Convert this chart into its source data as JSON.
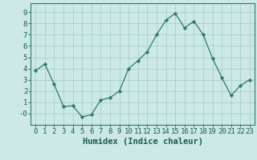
{
  "x": [
    0,
    1,
    2,
    3,
    4,
    5,
    6,
    7,
    8,
    9,
    10,
    11,
    12,
    13,
    14,
    15,
    16,
    17,
    18,
    19,
    20,
    21,
    22,
    23
  ],
  "y": [
    3.8,
    4.4,
    2.6,
    0.6,
    0.7,
    -0.3,
    -0.1,
    1.2,
    1.4,
    2.0,
    4.0,
    4.7,
    5.5,
    7.0,
    8.3,
    8.9,
    7.6,
    8.2,
    7.0,
    4.9,
    3.2,
    1.6,
    2.5,
    3.0
  ],
  "xlabel": "Humidex (Indice chaleur)",
  "bg_color": "#cce9e5",
  "line_color": "#2d7a6a",
  "grid_color": "#aacfca",
  "xlim": [
    -0.5,
    23.5
  ],
  "ylim": [
    -1.0,
    9.8
  ],
  "yticks": [
    0,
    1,
    2,
    3,
    4,
    5,
    6,
    7,
    8,
    9
  ],
  "xticks": [
    0,
    1,
    2,
    3,
    4,
    5,
    6,
    7,
    8,
    9,
    10,
    11,
    12,
    13,
    14,
    15,
    16,
    17,
    18,
    19,
    20,
    21,
    22,
    23
  ],
  "tick_color": "#1a5c50",
  "xlabel_fontsize": 7.5,
  "tick_fontsize": 6.5,
  "spine_color": "#2d7a6a"
}
